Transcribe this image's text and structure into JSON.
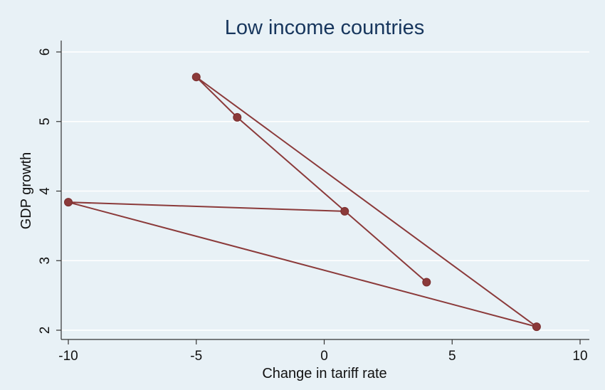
{
  "chart_data": {
    "type": "line",
    "title": "Low income countries",
    "xlabel": "Change in tariff rate",
    "ylabel": "GDP growth",
    "xlim": [
      -10,
      10
    ],
    "ylim": [
      2,
      6
    ],
    "xticks": [
      -10,
      -5,
      0,
      5,
      10
    ],
    "yticks": [
      2,
      3,
      4,
      5,
      6
    ],
    "xtick_labels": [
      "-10",
      "-5",
      "0",
      "5",
      "10"
    ],
    "ytick_labels": [
      "2",
      "3",
      "4",
      "5",
      "6"
    ],
    "grid": true,
    "series": [
      {
        "color": "#8b3a3a",
        "x": [
          4.0,
          -3.4,
          -5.0,
          8.3,
          -10.0,
          0.8
        ],
        "y": [
          2.69,
          5.06,
          5.64,
          2.05,
          3.84,
          3.71
        ]
      }
    ]
  },
  "colors": {
    "background": "#e8f1f6",
    "plot_background": "#ffffff",
    "title": "#17365d",
    "series": "#8b3a3a"
  }
}
